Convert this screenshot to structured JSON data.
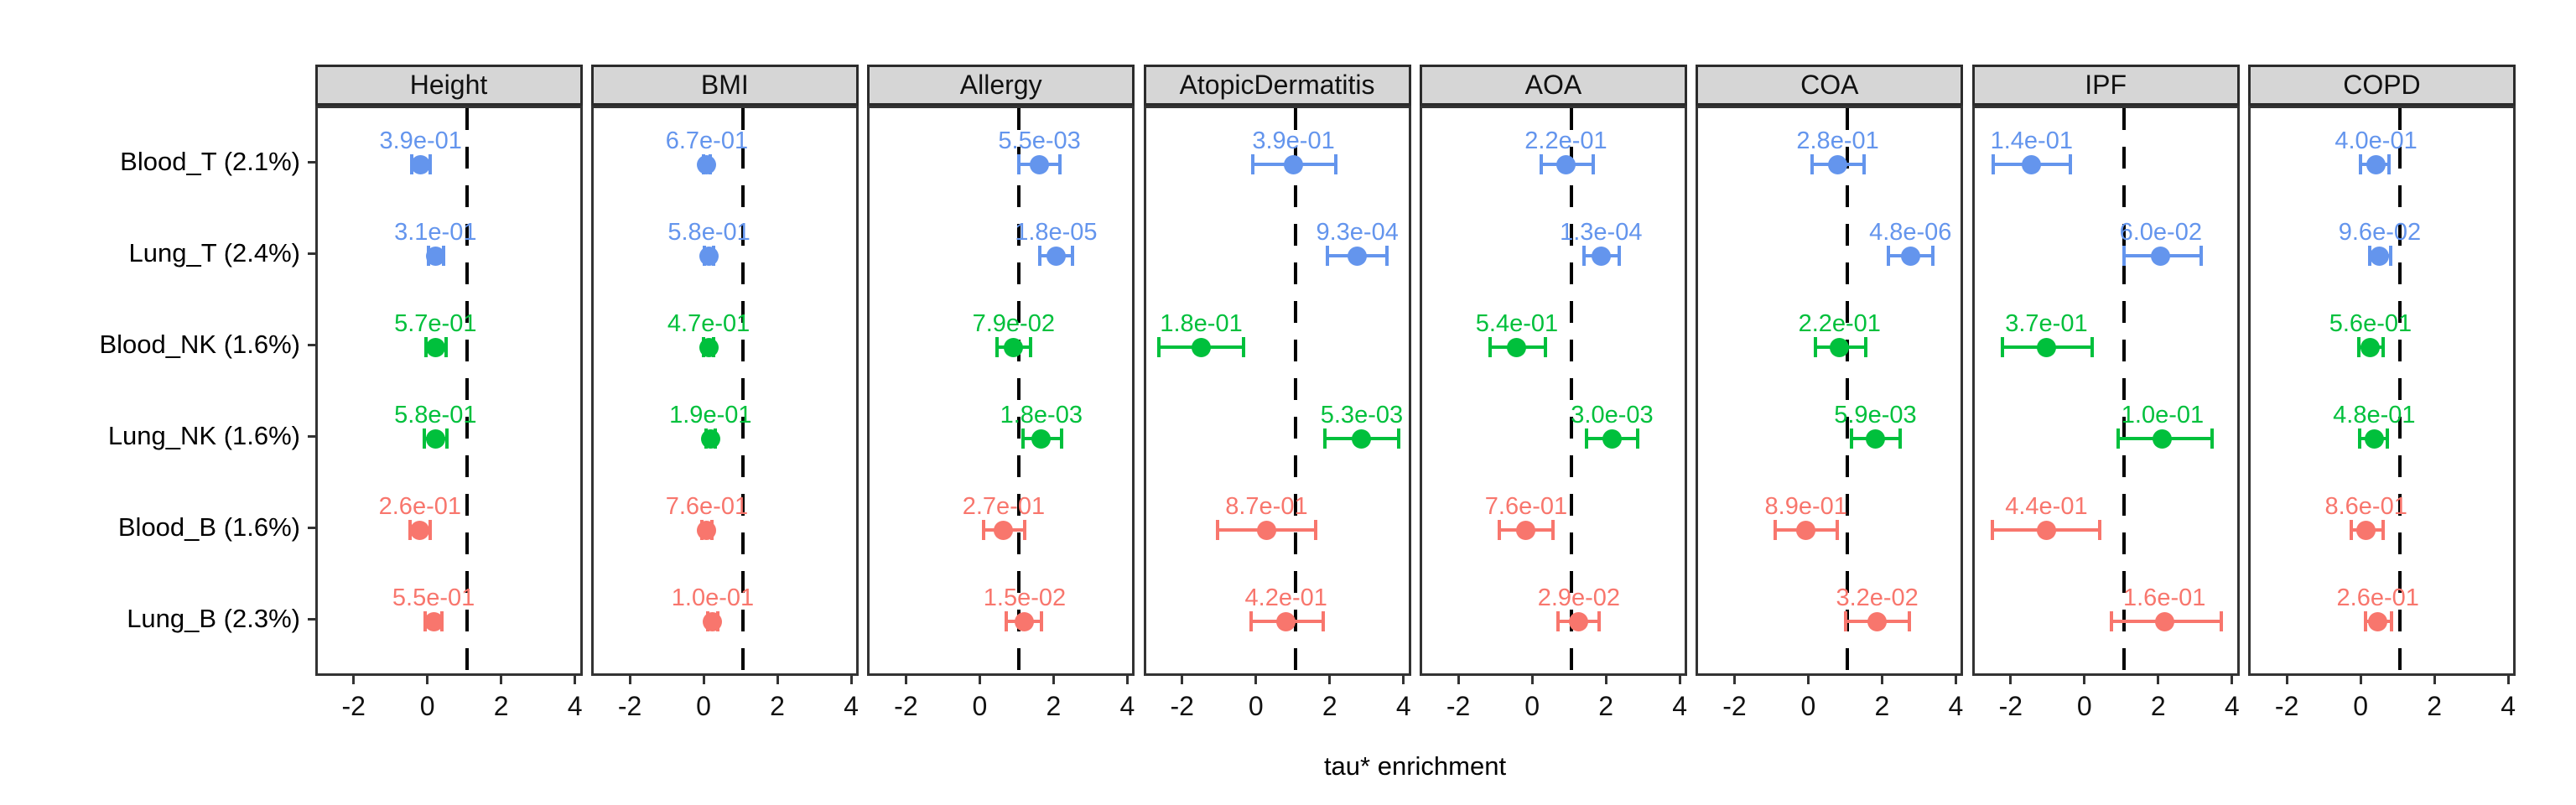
{
  "chart_data": {
    "type": "scatter",
    "subtype": "faceted-forest-plot-with-error-bars",
    "xlabel": "tau* enrichment",
    "x_ticks": [
      -2,
      0,
      2,
      4
    ],
    "x_range": [
      -3.05,
      4.2
    ],
    "dashed_reference_x": 1,
    "grid": "off",
    "facets": [
      "Height",
      "BMI",
      "Allergy",
      "AtopicDermatitis",
      "AOA",
      "COA",
      "IPF",
      "COPD"
    ],
    "rows": [
      "Blood_T (2.1%)",
      "Lung_T (2.4%)",
      "Blood_NK (1.6%)",
      "Lung_NK (1.6%)",
      "Blood_B (1.6%)",
      "Lung_B (2.3%)"
    ],
    "row_groups": [
      "T",
      "T",
      "NK",
      "NK",
      "B",
      "B"
    ],
    "group_colors": {
      "T": "#6495ED",
      "NK": "#00C03C",
      "B": "#F8766D"
    },
    "series": [
      {
        "facet": "Height",
        "points": [
          {
            "row": "Blood_T (2.1%)",
            "group": "T",
            "p_label": "3.9e-01",
            "estimate": -0.25,
            "ci_low": -0.5,
            "ci_high": 0.0
          },
          {
            "row": "Lung_T (2.4%)",
            "group": "T",
            "p_label": "3.1e-01",
            "estimate": 0.15,
            "ci_low": -0.05,
            "ci_high": 0.36
          },
          {
            "row": "Blood_NK (1.6%)",
            "group": "NK",
            "p_label": "5.7e-01",
            "estimate": 0.15,
            "ci_low": -0.1,
            "ci_high": 0.43
          },
          {
            "row": "Lung_NK (1.6%)",
            "group": "NK",
            "p_label": "5.8e-01",
            "estimate": 0.15,
            "ci_low": -0.16,
            "ci_high": 0.45
          },
          {
            "row": "Blood_B (1.6%)",
            "group": "B",
            "p_label": "2.6e-01",
            "estimate": -0.27,
            "ci_low": -0.55,
            "ci_high": 0.0
          },
          {
            "row": "Lung_B (2.3%)",
            "group": "B",
            "p_label": "5.5e-01",
            "estimate": 0.1,
            "ci_low": -0.12,
            "ci_high": 0.33
          }
        ]
      },
      {
        "facet": "BMI",
        "points": [
          {
            "row": "Blood_T (2.1%)",
            "group": "T",
            "p_label": "6.7e-01",
            "estimate": 0.02,
            "ci_low": -0.08,
            "ci_high": 0.12
          },
          {
            "row": "Lung_T (2.4%)",
            "group": "T",
            "p_label": "5.8e-01",
            "estimate": 0.08,
            "ci_low": -0.04,
            "ci_high": 0.2
          },
          {
            "row": "Blood_NK (1.6%)",
            "group": "NK",
            "p_label": "4.7e-01",
            "estimate": 0.07,
            "ci_low": -0.07,
            "ci_high": 0.21
          },
          {
            "row": "Lung_NK (1.6%)",
            "group": "NK",
            "p_label": "1.9e-01",
            "estimate": 0.12,
            "ci_low": 0.0,
            "ci_high": 0.24
          },
          {
            "row": "Blood_B (1.6%)",
            "group": "B",
            "p_label": "7.6e-01",
            "estimate": 0.02,
            "ci_low": -0.12,
            "ci_high": 0.16
          },
          {
            "row": "Lung_B (2.3%)",
            "group": "B",
            "p_label": "1.0e-01",
            "estimate": 0.18,
            "ci_low": 0.04,
            "ci_high": 0.32
          }
        ]
      },
      {
        "facet": "Allergy",
        "points": [
          {
            "row": "Blood_T (2.1%)",
            "group": "T",
            "p_label": "5.5e-03",
            "estimate": 1.55,
            "ci_low": 1.0,
            "ci_high": 2.1
          },
          {
            "row": "Lung_T (2.4%)",
            "group": "T",
            "p_label": "1.8e-05",
            "estimate": 2.0,
            "ci_low": 1.55,
            "ci_high": 2.45
          },
          {
            "row": "Blood_NK (1.6%)",
            "group": "NK",
            "p_label": "7.9e-02",
            "estimate": 0.85,
            "ci_low": 0.4,
            "ci_high": 1.3
          },
          {
            "row": "Lung_NK (1.6%)",
            "group": "NK",
            "p_label": "1.8e-03",
            "estimate": 1.6,
            "ci_low": 1.1,
            "ci_high": 2.15
          },
          {
            "row": "Blood_B (1.6%)",
            "group": "B",
            "p_label": "2.7e-01",
            "estimate": 0.58,
            "ci_low": 0.03,
            "ci_high": 1.15
          },
          {
            "row": "Lung_B (2.3%)",
            "group": "B",
            "p_label": "1.5e-02",
            "estimate": 1.15,
            "ci_low": 0.66,
            "ci_high": 1.6
          }
        ]
      },
      {
        "facet": "AtopicDermatitis",
        "points": [
          {
            "row": "Blood_T (2.1%)",
            "group": "T",
            "p_label": "3.9e-01",
            "estimate": 0.95,
            "ci_low": -0.15,
            "ci_high": 2.1
          },
          {
            "row": "Lung_T (2.4%)",
            "group": "T",
            "p_label": "9.3e-04",
            "estimate": 2.68,
            "ci_low": 1.87,
            "ci_high": 3.48
          },
          {
            "row": "Blood_NK (1.6%)",
            "group": "NK",
            "p_label": "1.8e-01",
            "estimate": -1.55,
            "ci_low": -2.7,
            "ci_high": -0.4
          },
          {
            "row": "Lung_NK (1.6%)",
            "group": "NK",
            "p_label": "5.3e-03",
            "estimate": 2.8,
            "ci_low": 1.8,
            "ci_high": 3.8
          },
          {
            "row": "Blood_B (1.6%)",
            "group": "B",
            "p_label": "8.7e-01",
            "estimate": 0.22,
            "ci_low": -1.1,
            "ci_high": 1.55
          },
          {
            "row": "Lung_B (2.3%)",
            "group": "B",
            "p_label": "4.2e-01",
            "estimate": 0.75,
            "ci_low": -0.2,
            "ci_high": 1.75
          }
        ]
      },
      {
        "facet": "AOA",
        "points": [
          {
            "row": "Blood_T (2.1%)",
            "group": "T",
            "p_label": "2.2e-01",
            "estimate": 0.85,
            "ci_low": 0.17,
            "ci_high": 1.6
          },
          {
            "row": "Lung_T (2.4%)",
            "group": "T",
            "p_label": "1.3e-04",
            "estimate": 1.8,
            "ci_low": 1.35,
            "ci_high": 2.3
          },
          {
            "row": "Blood_NK (1.6%)",
            "group": "NK",
            "p_label": "5.4e-01",
            "estimate": -0.48,
            "ci_low": -1.2,
            "ci_high": 0.3
          },
          {
            "row": "Lung_NK (1.6%)",
            "group": "NK",
            "p_label": "3.0e-03",
            "estimate": 2.1,
            "ci_low": 1.4,
            "ci_high": 2.8
          },
          {
            "row": "Blood_B (1.6%)",
            "group": "B",
            "p_label": "7.6e-01",
            "estimate": -0.23,
            "ci_low": -0.96,
            "ci_high": 0.5
          },
          {
            "row": "Lung_B (2.3%)",
            "group": "B",
            "p_label": "2.9e-02",
            "estimate": 1.2,
            "ci_low": 0.64,
            "ci_high": 1.75
          }
        ]
      },
      {
        "facet": "COA",
        "points": [
          {
            "row": "Blood_T (2.1%)",
            "group": "T",
            "p_label": "2.8e-01",
            "estimate": 0.73,
            "ci_low": 0.03,
            "ci_high": 1.45
          },
          {
            "row": "Lung_T (2.4%)",
            "group": "T",
            "p_label": "4.8e-06",
            "estimate": 2.7,
            "ci_low": 2.1,
            "ci_high": 3.3
          },
          {
            "row": "Blood_NK (1.6%)",
            "group": "NK",
            "p_label": "2.2e-01",
            "estimate": 0.78,
            "ci_low": 0.12,
            "ci_high": 1.5
          },
          {
            "row": "Lung_NK (1.6%)",
            "group": "NK",
            "p_label": "5.9e-03",
            "estimate": 1.75,
            "ci_low": 1.1,
            "ci_high": 2.43
          },
          {
            "row": "Blood_B (1.6%)",
            "group": "B",
            "p_label": "8.9e-01",
            "estimate": -0.13,
            "ci_low": -0.97,
            "ci_high": 0.72
          },
          {
            "row": "Lung_B (2.3%)",
            "group": "B",
            "p_label": "3.2e-02",
            "estimate": 1.8,
            "ci_low": 0.95,
            "ci_high": 2.68
          }
        ]
      },
      {
        "facet": "IPF",
        "points": [
          {
            "row": "Blood_T (2.1%)",
            "group": "T",
            "p_label": "1.4e-01",
            "estimate": -1.5,
            "ci_low": -2.55,
            "ci_high": -0.45
          },
          {
            "row": "Lung_T (2.4%)",
            "group": "T",
            "p_label": "6.0e-02",
            "estimate": 2.0,
            "ci_low": 1.0,
            "ci_high": 3.1
          },
          {
            "row": "Blood_NK (1.6%)",
            "group": "NK",
            "p_label": "3.7e-01",
            "estimate": -1.1,
            "ci_low": -2.3,
            "ci_high": 0.14
          },
          {
            "row": "Lung_NK (1.6%)",
            "group": "NK",
            "p_label": "1.0e-01",
            "estimate": 2.05,
            "ci_low": 0.84,
            "ci_high": 3.4
          },
          {
            "row": "Blood_B (1.6%)",
            "group": "B",
            "p_label": "4.4e-01",
            "estimate": -1.1,
            "ci_low": -2.57,
            "ci_high": 0.34
          },
          {
            "row": "Lung_B (2.3%)",
            "group": "B",
            "p_label": "1.6e-01",
            "estimate": 2.1,
            "ci_low": 0.66,
            "ci_high": 3.65
          }
        ]
      },
      {
        "facet": "COPD",
        "points": [
          {
            "row": "Blood_T (2.1%)",
            "group": "T",
            "p_label": "4.0e-01",
            "estimate": 0.35,
            "ci_low": -0.07,
            "ci_high": 0.7
          },
          {
            "row": "Lung_T (2.4%)",
            "group": "T",
            "p_label": "9.6e-02",
            "estimate": 0.45,
            "ci_low": 0.18,
            "ci_high": 0.74
          },
          {
            "row": "Blood_NK (1.6%)",
            "group": "NK",
            "p_label": "5.6e-01",
            "estimate": 0.2,
            "ci_low": -0.11,
            "ci_high": 0.54
          },
          {
            "row": "Lung_NK (1.6%)",
            "group": "NK",
            "p_label": "4.8e-01",
            "estimate": 0.3,
            "ci_low": -0.09,
            "ci_high": 0.65
          },
          {
            "row": "Blood_B (1.6%)",
            "group": "B",
            "p_label": "8.6e-01",
            "estimate": 0.08,
            "ci_low": -0.32,
            "ci_high": 0.54
          },
          {
            "row": "Lung_B (2.3%)",
            "group": "B",
            "p_label": "2.6e-01",
            "estimate": 0.4,
            "ci_low": 0.07,
            "ci_high": 0.77
          }
        ]
      }
    ],
    "style_colors": {
      "strip_background": "#d6d6d6",
      "panel_border": "#333333",
      "reference_line": "#000000"
    }
  }
}
